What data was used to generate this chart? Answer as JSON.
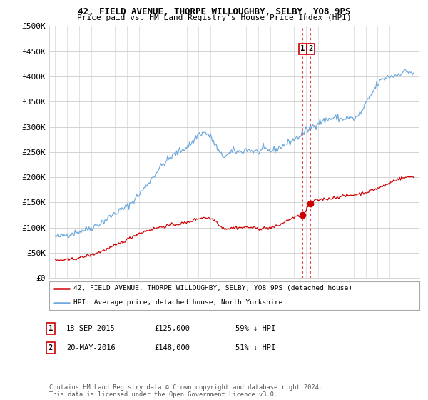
{
  "title1": "42, FIELD AVENUE, THORPE WILLOUGHBY, SELBY, YO8 9PS",
  "title2": "Price paid vs. HM Land Registry's House Price Index (HPI)",
  "ylabel_ticks": [
    "£0",
    "£50K",
    "£100K",
    "£150K",
    "£200K",
    "£250K",
    "£300K",
    "£350K",
    "£400K",
    "£450K",
    "£500K"
  ],
  "ytick_values": [
    0,
    50000,
    100000,
    150000,
    200000,
    250000,
    300000,
    350000,
    400000,
    450000,
    500000
  ],
  "xlim_years": [
    1994.5,
    2025.5
  ],
  "ylim": [
    0,
    500000
  ],
  "sale1_date": 2015.72,
  "sale1_price": 125000,
  "sale2_date": 2016.38,
  "sale2_price": 148000,
  "legend_line1": "42, FIELD AVENUE, THORPE WILLOUGHBY, SELBY, YO8 9PS (detached house)",
  "legend_line2": "HPI: Average price, detached house, North Yorkshire",
  "annotation1_label": "1",
  "annotation1_date": "18-SEP-2015",
  "annotation1_price": "£125,000",
  "annotation1_pct": "59% ↓ HPI",
  "annotation2_label": "2",
  "annotation2_date": "20-MAY-2016",
  "annotation2_price": "£148,000",
  "annotation2_pct": "51% ↓ HPI",
  "footer": "Contains HM Land Registry data © Crown copyright and database right 2024.\nThis data is licensed under the Open Government Licence v3.0.",
  "hpi_color": "#6fa8dc",
  "price_color": "#cc0000",
  "vline_color": "#cc0000",
  "background_color": "#ffffff",
  "grid_color": "#cccccc"
}
